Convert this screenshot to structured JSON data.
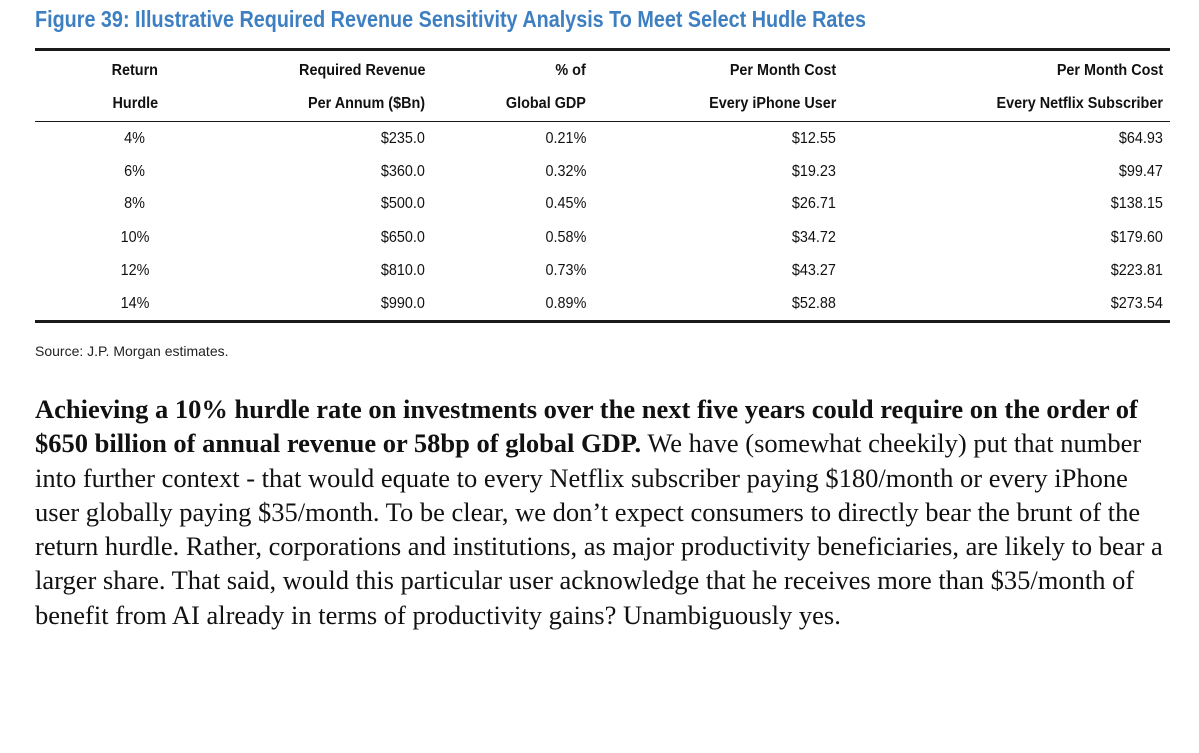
{
  "figure": {
    "title": "Figure 39: Illustrative Required Revenue Sensitivity Analysis To Meet Select Hudle Rates",
    "source": "Source: J.P. Morgan estimates."
  },
  "table": {
    "headers": [
      [
        "Return",
        "Hurdle"
      ],
      [
        "Required Revenue",
        "Per Annum ($Bn)"
      ],
      [
        "% of",
        "Global GDP"
      ],
      [
        "Per Month Cost",
        "Every iPhone User"
      ],
      [
        "Per Month Cost",
        "Every Netflix Subscriber"
      ]
    ],
    "rows": [
      [
        "4%",
        "$235.0",
        "0.21%",
        "$12.55",
        "$64.93"
      ],
      [
        "6%",
        "$360.0",
        "0.32%",
        "$19.23",
        "$99.47"
      ],
      [
        "8%",
        "$500.0",
        "0.45%",
        "$26.71",
        "$138.15"
      ],
      [
        "10%",
        "$650.0",
        "0.58%",
        "$34.72",
        "$179.60"
      ],
      [
        "12%",
        "$810.0",
        "0.73%",
        "$43.27",
        "$223.81"
      ],
      [
        "14%",
        "$990.0",
        "0.89%",
        "$52.88",
        "$273.54"
      ]
    ]
  },
  "body": {
    "bold": "Achieving a 10% hurdle rate on investments over the next five years could require on the order of $650 billion of annual revenue or 58bp of global GDP.",
    "rest": " We have (somewhat cheekily) put that number into further context - that would equate to every Netflix subscriber paying $180/month or every iPhone user globally paying $35/month. To be clear, we don’t expect consumers to directly bear the brunt of the return hurdle. Rather, corporations and institutions, as major productivity beneficiaries, are likely to bear a larger share. That said, would this particular user acknowledge that he receives more than $35/month of benefit from AI already in terms of productivity gains? Unambiguously yes."
  }
}
